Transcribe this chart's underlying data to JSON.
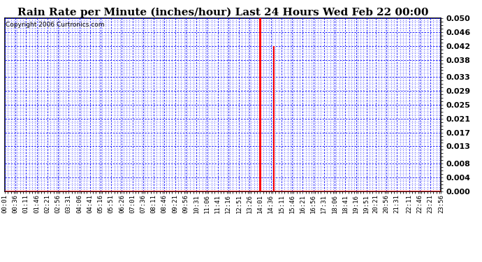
{
  "title": "Rain Rate per Minute (inches/hour) Last 24 Hours Wed Feb 22 00:00",
  "copyright": "Copyright 2006 Curtronics.com",
  "background_color": "#ffffff",
  "plot_bg_color": "#ffffff",
  "bar_color": "#ff0000",
  "grid_color": "#0000ff",
  "axis_color": "#000000",
  "yticks": [
    0.0,
    0.004,
    0.008,
    0.013,
    0.017,
    0.021,
    0.025,
    0.029,
    0.033,
    0.038,
    0.042,
    0.046,
    0.05
  ],
  "ylim": [
    0.0,
    0.05
  ],
  "bar_data": {
    "14:01": 0.05,
    "14:46": 0.042
  },
  "total_minutes": 1440,
  "xtick_labels": [
    "00:01",
    "00:36",
    "01:11",
    "01:46",
    "02:21",
    "02:56",
    "03:31",
    "04:06",
    "04:41",
    "05:16",
    "05:51",
    "06:26",
    "07:01",
    "07:36",
    "08:11",
    "08:46",
    "09:21",
    "09:56",
    "10:31",
    "11:06",
    "11:41",
    "12:16",
    "12:51",
    "13:26",
    "14:01",
    "14:36",
    "15:11",
    "15:46",
    "16:21",
    "16:56",
    "17:31",
    "18:06",
    "18:41",
    "19:16",
    "19:51",
    "20:21",
    "20:56",
    "21:31",
    "22:11",
    "22:46",
    "23:21",
    "23:56"
  ],
  "title_fontsize": 11,
  "tick_fontsize": 6.5,
  "copyright_fontsize": 6.5,
  "ytick_fontsize": 8
}
